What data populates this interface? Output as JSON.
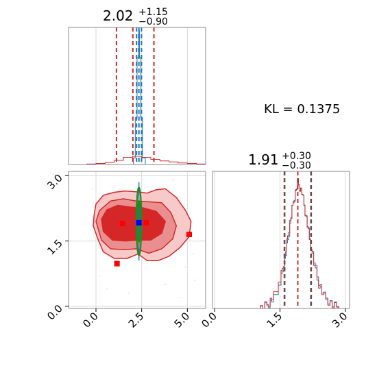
{
  "chart_data": [
    {
      "type": "histogram",
      "panel": "top-left",
      "title": {
        "median": "2.02",
        "upper": "+1.15",
        "lower": "−0.90"
      },
      "xlim": [
        -1.5,
        6.0
      ],
      "grid": true,
      "wide_series": {
        "name": "",
        "color": "#d62728",
        "x": [
          -1.5,
          -0.5,
          0.0,
          0.5,
          1.0,
          1.5,
          2.0,
          2.5,
          3.0,
          3.5,
          4.0,
          4.5,
          5.0,
          5.5,
          6.0
        ],
        "y": [
          0.0,
          0.005,
          0.01,
          0.02,
          0.04,
          0.07,
          0.08,
          0.07,
          0.05,
          0.035,
          0.025,
          0.015,
          0.01,
          0.005,
          0.0
        ]
      },
      "narrow_series": {
        "name": "",
        "color": "#1f77b4",
        "x": [
          1.9,
          2.05,
          2.15,
          2.25,
          2.32,
          2.38,
          2.45,
          2.55,
          2.7
        ],
        "y": [
          0.0,
          0.05,
          0.35,
          0.8,
          1.0,
          0.8,
          0.35,
          0.05,
          0.0
        ]
      },
      "quantile_lines": [
        {
          "x": 1.12,
          "color": "#d62728"
        },
        {
          "x": 2.02,
          "color": "#d62728"
        },
        {
          "x": 3.17,
          "color": "#d62728"
        },
        {
          "x": 2.22,
          "color": "#1f77b4"
        },
        {
          "x": 2.35,
          "color": "#1f77b4"
        },
        {
          "x": 2.49,
          "color": "#1f77b4"
        }
      ]
    },
    {
      "type": "contour",
      "panel": "bottom-left",
      "xlim": [
        -1.5,
        6.0
      ],
      "ylim": [
        -0.05,
        3.1
      ],
      "xticks": [
        "0.0",
        "2.5",
        "5.0"
      ],
      "yticks": [
        "0.0",
        "1.5",
        "3.0"
      ],
      "grid": true,
      "contours": [
        {
          "level": "outer",
          "fill": "#f8c9c9",
          "points": [
            [
              -0.1,
              2.1
            ],
            [
              0.0,
              2.35
            ],
            [
              0.4,
              2.55
            ],
            [
              1.0,
              2.62
            ],
            [
              1.6,
              2.65
            ],
            [
              2.2,
              2.63
            ],
            [
              2.8,
              2.6
            ],
            [
              3.3,
              2.68
            ],
            [
              3.8,
              2.7
            ],
            [
              4.4,
              2.5
            ],
            [
              4.9,
              2.2
            ],
            [
              5.2,
              1.95
            ],
            [
              5.1,
              1.6
            ],
            [
              4.6,
              1.35
            ],
            [
              4.0,
              1.15
            ],
            [
              3.4,
              1.05
            ],
            [
              2.8,
              1.05
            ],
            [
              2.3,
              1.2
            ],
            [
              1.7,
              1.1
            ],
            [
              1.0,
              1.1
            ],
            [
              0.4,
              1.25
            ],
            [
              0.1,
              1.55
            ],
            [
              -0.15,
              1.85
            ]
          ]
        },
        {
          "level": "middle",
          "fill": "#ea8f8f",
          "points": [
            [
              0.0,
              1.95
            ],
            [
              0.2,
              2.2
            ],
            [
              0.8,
              2.42
            ],
            [
              1.5,
              2.47
            ],
            [
              2.2,
              2.42
            ],
            [
              2.9,
              2.4
            ],
            [
              3.6,
              2.38
            ],
            [
              4.1,
              2.15
            ],
            [
              4.4,
              1.85
            ],
            [
              4.2,
              1.55
            ],
            [
              3.6,
              1.32
            ],
            [
              2.9,
              1.22
            ],
            [
              2.2,
              1.32
            ],
            [
              1.5,
              1.3
            ],
            [
              0.8,
              1.32
            ],
            [
              0.3,
              1.52
            ]
          ]
        },
        {
          "level": "inner",
          "fill": "#d62728",
          "points": [
            [
              0.3,
              2.0
            ],
            [
              0.6,
              2.22
            ],
            [
              1.2,
              2.32
            ],
            [
              1.9,
              2.28
            ],
            [
              2.6,
              2.26
            ],
            [
              3.3,
              2.18
            ],
            [
              3.8,
              1.95
            ],
            [
              3.6,
              1.68
            ],
            [
              3.0,
              1.52
            ],
            [
              2.3,
              1.52
            ],
            [
              1.6,
              1.5
            ],
            [
              0.9,
              1.52
            ],
            [
              0.4,
              1.72
            ]
          ]
        }
      ],
      "ellipses": [
        {
          "cx": 2.35,
          "cy": 1.95,
          "rx": 0.14,
          "ry": 0.78,
          "color": "#1f8c1f"
        },
        {
          "cx": 2.35,
          "cy": 1.95,
          "rx": 0.08,
          "ry": 0.48,
          "color": "#1f8c1f"
        }
      ],
      "blue_line": {
        "x": 2.35,
        "y1": 1.05,
        "y2": 2.85,
        "color": "#1f77b4"
      },
      "markers": [
        {
          "x": 2.35,
          "y": 1.92,
          "color": "#0000ff"
        },
        {
          "x": 1.45,
          "y": 1.9,
          "color": "#ff0000"
        },
        {
          "x": 2.75,
          "y": 1.92,
          "color": "#ff0000"
        },
        {
          "x": 1.15,
          "y": 0.98,
          "color": "#ff0000"
        },
        {
          "x": 5.1,
          "y": 1.65,
          "color": "#ff0000"
        }
      ]
    },
    {
      "type": "histogram",
      "panel": "bottom-right",
      "title": {
        "median": "1.91",
        "upper": "+0.30",
        "lower": "−0.30"
      },
      "xlim": [
        -0.05,
        3.1
      ],
      "xticks": [
        "0.0",
        "1.5",
        "3.0"
      ],
      "grid": true,
      "series": [
        {
          "name": "",
          "color": "#1f77b4",
          "x": [
            1.0,
            1.2,
            1.35,
            1.5,
            1.6,
            1.7,
            1.8,
            1.9,
            2.0,
            2.1,
            2.2,
            2.35,
            2.5,
            2.7,
            2.9
          ],
          "y": [
            0.0,
            0.02,
            0.08,
            0.2,
            0.38,
            0.6,
            0.85,
            1.0,
            0.92,
            0.72,
            0.5,
            0.25,
            0.1,
            0.03,
            0.0
          ]
        },
        {
          "name": "",
          "color": "#d62728",
          "x": [
            1.0,
            1.2,
            1.35,
            1.5,
            1.6,
            1.7,
            1.8,
            1.9,
            2.0,
            2.1,
            2.2,
            2.35,
            2.5,
            2.7,
            2.9
          ],
          "y": [
            0.0,
            0.03,
            0.1,
            0.22,
            0.4,
            0.62,
            0.82,
            0.98,
            0.9,
            0.7,
            0.48,
            0.22,
            0.09,
            0.02,
            0.0
          ]
        }
      ],
      "quantile_lines": [
        {
          "x": 1.6,
          "color": "#d62728"
        },
        {
          "x": 1.91,
          "color": "#d62728"
        },
        {
          "x": 2.21,
          "color": "#d62728"
        },
        {
          "x": 1.61,
          "color": "#555555"
        },
        {
          "x": 2.22,
          "color": "#555555"
        }
      ]
    }
  ],
  "annotation": {
    "kl_text": "KL = 0.1375"
  }
}
